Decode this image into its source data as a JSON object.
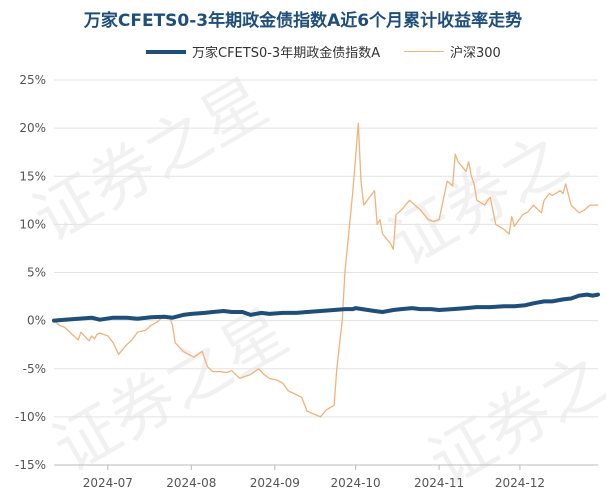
{
  "watermark": "证券之星",
  "chart_data": {
    "type": "line",
    "title": "万家CFETS0-3年期政金债指数A近6个月累计收益率走势",
    "xlabel": "",
    "ylabel": "",
    "ylim": [
      -15,
      25
    ],
    "yticks": [
      -15,
      -10,
      -5,
      0,
      5,
      10,
      15,
      20,
      25
    ],
    "ytick_labels": [
      "-15%",
      "-10%",
      "-5%",
      "0%",
      "5%",
      "10%",
      "15%",
      "20%",
      "25%"
    ],
    "xlim": [
      "2024-06-11",
      "2024-12-30"
    ],
    "xticks": [
      {
        "date": "2024-07-01",
        "label": "2024-07"
      },
      {
        "date": "2024-08-01",
        "label": "2024-08"
      },
      {
        "date": "2024-09-01",
        "label": "2024-09"
      },
      {
        "date": "2024-10-01",
        "label": "2024-10"
      },
      {
        "date": "2024-11-01",
        "label": "2024-11"
      },
      {
        "date": "2024-12-01",
        "label": "2024-12"
      }
    ],
    "grid": "horizontal",
    "legend_position": "top",
    "series": [
      {
        "name": "万家CFETS0-3年期政金债指数A",
        "color": "#1f4e79",
        "line_style": "thick",
        "points": [
          [
            "2024-06-11",
            0.0
          ],
          [
            "2024-06-15",
            0.1
          ],
          [
            "2024-06-20",
            0.2
          ],
          [
            "2024-06-25",
            0.3
          ],
          [
            "2024-06-28",
            0.1
          ],
          [
            "2024-07-03",
            0.3
          ],
          [
            "2024-07-08",
            0.3
          ],
          [
            "2024-07-12",
            0.2
          ],
          [
            "2024-07-17",
            0.35
          ],
          [
            "2024-07-22",
            0.4
          ],
          [
            "2024-07-25",
            0.3
          ],
          [
            "2024-07-29",
            0.6
          ],
          [
            "2024-08-01",
            0.7
          ],
          [
            "2024-08-06",
            0.8
          ],
          [
            "2024-08-09",
            0.9
          ],
          [
            "2024-08-13",
            1.0
          ],
          [
            "2024-08-16",
            0.9
          ],
          [
            "2024-08-20",
            0.9
          ],
          [
            "2024-08-23",
            0.6
          ],
          [
            "2024-08-27",
            0.8
          ],
          [
            "2024-08-30",
            0.7
          ],
          [
            "2024-09-04",
            0.8
          ],
          [
            "2024-09-09",
            0.8
          ],
          [
            "2024-09-13",
            0.9
          ],
          [
            "2024-09-18",
            1.0
          ],
          [
            "2024-09-23",
            1.1
          ],
          [
            "2024-09-27",
            1.2
          ],
          [
            "2024-09-30",
            1.2
          ],
          [
            "2024-10-01",
            1.3
          ],
          [
            "2024-10-08",
            1.0
          ],
          [
            "2024-10-11",
            0.9
          ],
          [
            "2024-10-15",
            1.1
          ],
          [
            "2024-10-18",
            1.2
          ],
          [
            "2024-10-22",
            1.3
          ],
          [
            "2024-10-25",
            1.2
          ],
          [
            "2024-10-29",
            1.2
          ],
          [
            "2024-11-01",
            1.1
          ],
          [
            "2024-11-06",
            1.2
          ],
          [
            "2024-11-11",
            1.3
          ],
          [
            "2024-11-15",
            1.4
          ],
          [
            "2024-11-20",
            1.4
          ],
          [
            "2024-11-25",
            1.5
          ],
          [
            "2024-11-29",
            1.5
          ],
          [
            "2024-12-03",
            1.6
          ],
          [
            "2024-12-06",
            1.8
          ],
          [
            "2024-12-10",
            2.0
          ],
          [
            "2024-12-13",
            2.0
          ],
          [
            "2024-12-17",
            2.2
          ],
          [
            "2024-12-20",
            2.3
          ],
          [
            "2024-12-23",
            2.6
          ],
          [
            "2024-12-26",
            2.7
          ],
          [
            "2024-12-28",
            2.6
          ],
          [
            "2024-12-30",
            2.7
          ]
        ]
      },
      {
        "name": "沪深300",
        "color": "#f2b27c",
        "line_style": "thin",
        "points": [
          [
            "2024-06-11",
            0.0
          ],
          [
            "2024-06-13",
            -0.5
          ],
          [
            "2024-06-15",
            -0.7
          ],
          [
            "2024-06-18",
            -1.5
          ],
          [
            "2024-06-20",
            -2.0
          ],
          [
            "2024-06-21",
            -1.2
          ],
          [
            "2024-06-24",
            -2.1
          ],
          [
            "2024-06-25",
            -1.6
          ],
          [
            "2024-06-26",
            -1.9
          ],
          [
            "2024-06-27",
            -1.4
          ],
          [
            "2024-06-28",
            -1.3
          ],
          [
            "2024-07-01",
            -1.6
          ],
          [
            "2024-07-03",
            -2.3
          ],
          [
            "2024-07-05",
            -3.5
          ],
          [
            "2024-07-08",
            -2.5
          ],
          [
            "2024-07-10",
            -2.0
          ],
          [
            "2024-07-12",
            -1.2
          ],
          [
            "2024-07-15",
            -1.0
          ],
          [
            "2024-07-17",
            -0.5
          ],
          [
            "2024-07-19",
            -0.2
          ],
          [
            "2024-07-22",
            0.5
          ],
          [
            "2024-07-24",
            0.3
          ],
          [
            "2024-07-25",
            -0.5
          ],
          [
            "2024-07-26",
            -2.3
          ],
          [
            "2024-07-29",
            -3.2
          ],
          [
            "2024-07-31",
            -3.5
          ],
          [
            "2024-08-02",
            -3.8
          ],
          [
            "2024-08-05",
            -3.2
          ],
          [
            "2024-08-07",
            -4.8
          ],
          [
            "2024-08-09",
            -5.3
          ],
          [
            "2024-08-12",
            -5.3
          ],
          [
            "2024-08-14",
            -5.4
          ],
          [
            "2024-08-16",
            -5.2
          ],
          [
            "2024-08-19",
            -6.0
          ],
          [
            "2024-08-21",
            -5.8
          ],
          [
            "2024-08-23",
            -5.6
          ],
          [
            "2024-08-26",
            -5.0
          ],
          [
            "2024-08-28",
            -5.6
          ],
          [
            "2024-08-30",
            -6.0
          ],
          [
            "2024-09-02",
            -6.2
          ],
          [
            "2024-09-04",
            -6.5
          ],
          [
            "2024-09-06",
            -7.3
          ],
          [
            "2024-09-09",
            -7.7
          ],
          [
            "2024-09-11",
            -8.0
          ],
          [
            "2024-09-13",
            -9.4
          ],
          [
            "2024-09-18",
            -10.0
          ],
          [
            "2024-09-20",
            -9.3
          ],
          [
            "2024-09-23",
            -8.8
          ],
          [
            "2024-09-24",
            -5.0
          ],
          [
            "2024-09-26",
            0.0
          ],
          [
            "2024-09-27",
            5.0
          ],
          [
            "2024-09-30",
            13.5
          ],
          [
            "2024-10-02",
            20.5
          ],
          [
            "2024-10-03",
            14.5
          ],
          [
            "2024-10-04",
            12.0
          ],
          [
            "2024-10-08",
            13.5
          ],
          [
            "2024-10-09",
            10.0
          ],
          [
            "2024-10-10",
            10.5
          ],
          [
            "2024-10-11",
            9.0
          ],
          [
            "2024-10-14",
            8.0
          ],
          [
            "2024-10-15",
            7.4
          ],
          [
            "2024-10-16",
            11.0
          ],
          [
            "2024-10-18",
            11.5
          ],
          [
            "2024-10-21",
            12.5
          ],
          [
            "2024-10-23",
            12.0
          ],
          [
            "2024-10-25",
            11.5
          ],
          [
            "2024-10-28",
            10.5
          ],
          [
            "2024-10-30",
            10.3
          ],
          [
            "2024-11-01",
            10.5
          ],
          [
            "2024-11-04",
            14.5
          ],
          [
            "2024-11-06",
            14.0
          ],
          [
            "2024-11-07",
            17.3
          ],
          [
            "2024-11-08",
            16.5
          ],
          [
            "2024-11-11",
            15.5
          ],
          [
            "2024-11-12",
            16.5
          ],
          [
            "2024-11-13",
            15.0
          ],
          [
            "2024-11-14",
            14.2
          ],
          [
            "2024-11-15",
            12.5
          ],
          [
            "2024-11-18",
            12.0
          ],
          [
            "2024-11-19",
            12.5
          ],
          [
            "2024-11-20",
            12.8
          ],
          [
            "2024-11-22",
            10.0
          ],
          [
            "2024-11-25",
            9.5
          ],
          [
            "2024-11-27",
            9.0
          ],
          [
            "2024-11-28",
            10.8
          ],
          [
            "2024-11-29",
            9.8
          ],
          [
            "2024-12-02",
            11.0
          ],
          [
            "2024-12-04",
            11.3
          ],
          [
            "2024-12-06",
            12.0
          ],
          [
            "2024-12-09",
            11.2
          ],
          [
            "2024-12-10",
            12.5
          ],
          [
            "2024-12-12",
            13.2
          ],
          [
            "2024-12-13",
            13.0
          ],
          [
            "2024-12-16",
            13.5
          ],
          [
            "2024-12-17",
            13.2
          ],
          [
            "2024-12-18",
            14.2
          ],
          [
            "2024-12-20",
            12.0
          ],
          [
            "2024-12-23",
            11.2
          ],
          [
            "2024-12-25",
            11.5
          ],
          [
            "2024-12-27",
            12.0
          ],
          [
            "2024-12-30",
            12.0
          ]
        ]
      }
    ]
  }
}
